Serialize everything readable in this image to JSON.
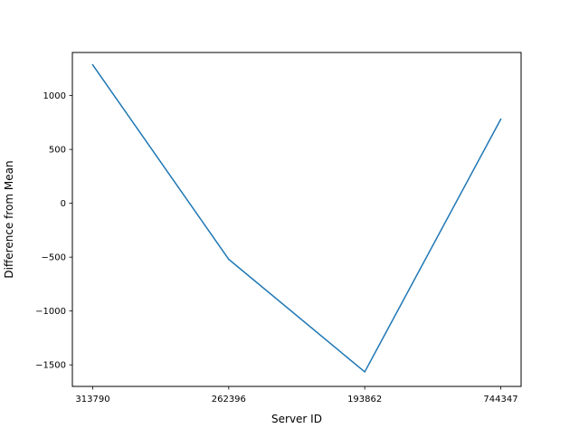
{
  "chart_data": {
    "type": "line",
    "categories": [
      "313790",
      "262396",
      "193862",
      "744347"
    ],
    "series": [
      {
        "values": [
          1285,
          -520,
          -1565,
          780
        ],
        "color": "#1f77b4"
      }
    ],
    "title": "",
    "xlabel": "Server ID",
    "ylabel": "Difference from Mean",
    "ylim": [
      -1700,
      1400
    ],
    "yticks": [
      -1500,
      -1000,
      -500,
      0,
      500,
      1000
    ],
    "ytick_labels": [
      "−1500",
      "−1000",
      "−500",
      "0",
      "500",
      "1000"
    ],
    "grid": false,
    "legend": "none"
  }
}
